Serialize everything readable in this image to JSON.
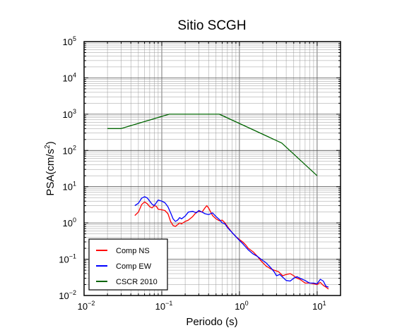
{
  "chart_data": {
    "type": "line",
    "title": "Sitio SCGH",
    "xlabel": "Periodo (s)",
    "ylabel_prefix": "PSA(cm/s",
    "ylabel_exp": "2",
    "ylabel_suffix": ")",
    "x_scale": "log",
    "y_scale": "log",
    "xlim": [
      0.01,
      20
    ],
    "ylim": [
      0.01,
      100000
    ],
    "grid": true,
    "legend_position": "bottom-left",
    "x_ticks": [
      {
        "base": "10",
        "exp": "−2",
        "value": 0.01
      },
      {
        "base": "10",
        "exp": "−1",
        "value": 0.1
      },
      {
        "base": "10",
        "exp": "0",
        "value": 1
      },
      {
        "base": "10",
        "exp": "1",
        "value": 10
      }
    ],
    "y_ticks": [
      {
        "base": "10",
        "exp": "−2",
        "value": 0.01
      },
      {
        "base": "10",
        "exp": "−1",
        "value": 0.1
      },
      {
        "base": "10",
        "exp": "0",
        "value": 1
      },
      {
        "base": "10",
        "exp": "1",
        "value": 10
      },
      {
        "base": "10",
        "exp": "2",
        "value": 100
      },
      {
        "base": "10",
        "exp": "3",
        "value": 1000
      },
      {
        "base": "10",
        "exp": "4",
        "value": 10000
      },
      {
        "base": "10",
        "exp": "5",
        "value": 100000
      }
    ],
    "series": [
      {
        "name": "Comp NS",
        "color": "#ff0000",
        "points": [
          [
            0.045,
            1.6
          ],
          [
            0.05,
            2.0
          ],
          [
            0.055,
            3.2
          ],
          [
            0.06,
            3.8
          ],
          [
            0.065,
            3.4
          ],
          [
            0.07,
            2.8
          ],
          [
            0.075,
            2.6
          ],
          [
            0.08,
            3.0
          ],
          [
            0.085,
            2.9
          ],
          [
            0.09,
            2.4
          ],
          [
            0.1,
            2.3
          ],
          [
            0.11,
            2.2
          ],
          [
            0.12,
            1.8
          ],
          [
            0.13,
            1.1
          ],
          [
            0.14,
            0.85
          ],
          [
            0.15,
            0.8
          ],
          [
            0.16,
            0.9
          ],
          [
            0.17,
            1.0
          ],
          [
            0.18,
            0.95
          ],
          [
            0.2,
            1.1
          ],
          [
            0.22,
            1.2
          ],
          [
            0.25,
            1.5
          ],
          [
            0.28,
            2.0
          ],
          [
            0.3,
            2.1
          ],
          [
            0.33,
            2.0
          ],
          [
            0.36,
            2.6
          ],
          [
            0.38,
            3.0
          ],
          [
            0.4,
            2.6
          ],
          [
            0.45,
            1.6
          ],
          [
            0.5,
            1.3
          ],
          [
            0.55,
            1.15
          ],
          [
            0.6,
            1.2
          ],
          [
            0.65,
            1.0
          ],
          [
            0.7,
            0.8
          ],
          [
            0.8,
            0.55
          ],
          [
            0.9,
            0.42
          ],
          [
            1.0,
            0.35
          ],
          [
            1.1,
            0.3
          ],
          [
            1.2,
            0.25
          ],
          [
            1.3,
            0.2
          ],
          [
            1.5,
            0.16
          ],
          [
            1.7,
            0.12
          ],
          [
            1.9,
            0.09
          ],
          [
            2.2,
            0.065
          ],
          [
            2.5,
            0.055
          ],
          [
            2.8,
            0.05
          ],
          [
            3.2,
            0.045
          ],
          [
            3.6,
            0.035
          ],
          [
            4.0,
            0.038
          ],
          [
            4.5,
            0.04
          ],
          [
            5.0,
            0.035
          ],
          [
            5.5,
            0.03
          ],
          [
            6.0,
            0.028
          ],
          [
            7.0,
            0.022
          ],
          [
            8.0,
            0.022
          ],
          [
            9.0,
            0.021
          ],
          [
            10.0,
            0.02
          ],
          [
            11.0,
            0.023
          ],
          [
            12.0,
            0.019
          ],
          [
            13.0,
            0.017
          ],
          [
            14.0,
            0.015
          ]
        ]
      },
      {
        "name": "Comp EW",
        "color": "#0000ff",
        "points": [
          [
            0.045,
            3.0
          ],
          [
            0.05,
            3.5
          ],
          [
            0.055,
            4.8
          ],
          [
            0.06,
            5.3
          ],
          [
            0.065,
            4.9
          ],
          [
            0.07,
            4.0
          ],
          [
            0.075,
            3.3
          ],
          [
            0.08,
            3.0
          ],
          [
            0.085,
            3.6
          ],
          [
            0.09,
            4.3
          ],
          [
            0.1,
            4.0
          ],
          [
            0.11,
            3.6
          ],
          [
            0.12,
            2.8
          ],
          [
            0.13,
            1.9
          ],
          [
            0.14,
            1.3
          ],
          [
            0.15,
            1.1
          ],
          [
            0.16,
            1.2
          ],
          [
            0.17,
            1.4
          ],
          [
            0.18,
            1.3
          ],
          [
            0.2,
            1.55
          ],
          [
            0.22,
            2.0
          ],
          [
            0.25,
            2.1
          ],
          [
            0.28,
            1.9
          ],
          [
            0.3,
            2.2
          ],
          [
            0.33,
            2.0
          ],
          [
            0.36,
            1.8
          ],
          [
            0.4,
            1.7
          ],
          [
            0.45,
            1.9
          ],
          [
            0.5,
            1.5
          ],
          [
            0.55,
            1.25
          ],
          [
            0.6,
            1.0
          ],
          [
            0.65,
            0.95
          ],
          [
            0.7,
            0.75
          ],
          [
            0.8,
            0.55
          ],
          [
            0.9,
            0.42
          ],
          [
            1.0,
            0.33
          ],
          [
            1.1,
            0.27
          ],
          [
            1.2,
            0.22
          ],
          [
            1.3,
            0.18
          ],
          [
            1.5,
            0.14
          ],
          [
            1.7,
            0.12
          ],
          [
            1.9,
            0.1
          ],
          [
            2.2,
            0.08
          ],
          [
            2.5,
            0.06
          ],
          [
            2.8,
            0.045
          ],
          [
            3.0,
            0.035
          ],
          [
            3.3,
            0.038
          ],
          [
            3.6,
            0.032
          ],
          [
            4.0,
            0.026
          ],
          [
            4.5,
            0.025
          ],
          [
            5.0,
            0.03
          ],
          [
            5.5,
            0.033
          ],
          [
            6.0,
            0.03
          ],
          [
            7.0,
            0.026
          ],
          [
            8.0,
            0.022
          ],
          [
            9.0,
            0.022
          ],
          [
            10.0,
            0.021
          ],
          [
            11.0,
            0.028
          ],
          [
            12.0,
            0.025
          ],
          [
            13.0,
            0.018
          ],
          [
            14.0,
            0.017
          ]
        ]
      },
      {
        "name": "CSCR 2010",
        "color": "#006400",
        "points": [
          [
            0.02,
            400
          ],
          [
            0.03,
            400
          ],
          [
            0.125,
            1000
          ],
          [
            0.55,
            1000
          ],
          [
            3.5,
            160
          ],
          [
            10.0,
            20
          ]
        ]
      }
    ]
  }
}
